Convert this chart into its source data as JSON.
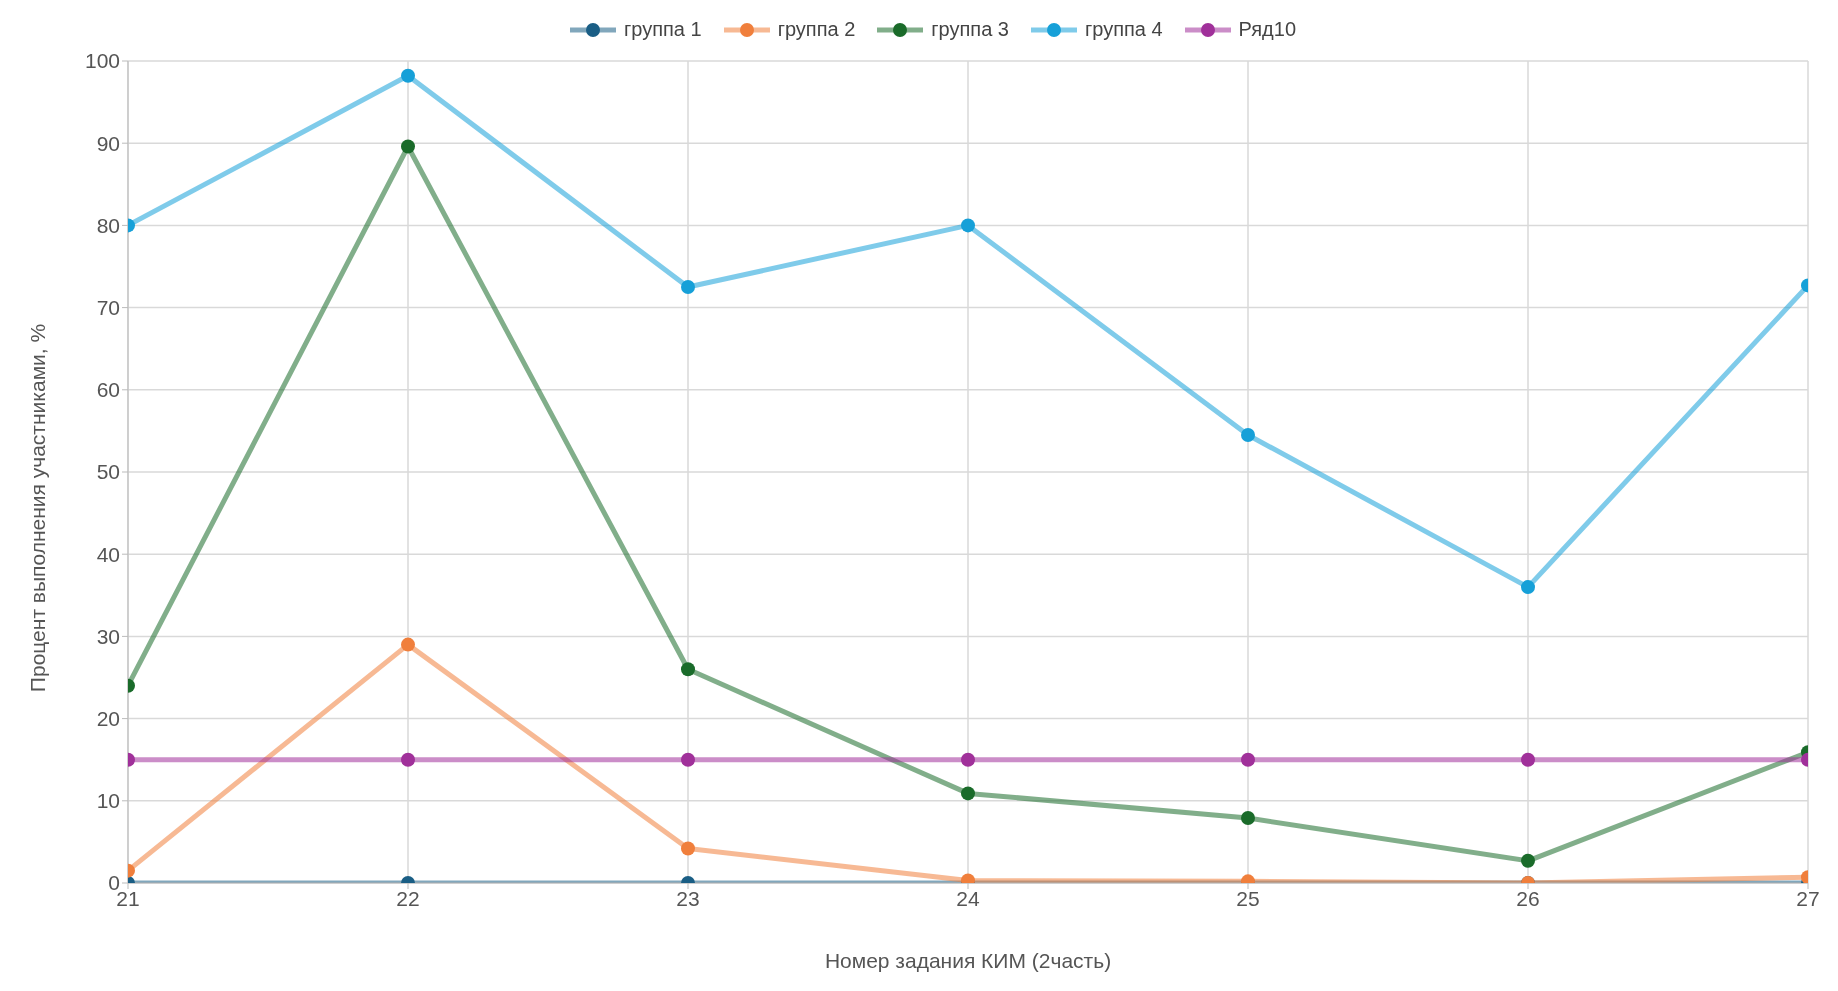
{
  "chart_data": {
    "type": "line",
    "xlabel": "Номер задания КИМ (2часть)",
    "ylabel": "Процент выполнения участниками, %",
    "x": [
      21,
      22,
      23,
      24,
      25,
      26,
      27
    ],
    "xlim": [
      21,
      27
    ],
    "xticks": [
      21,
      22,
      23,
      24,
      25,
      26,
      27
    ],
    "ylim": [
      0,
      100
    ],
    "yticks": [
      0,
      10,
      20,
      30,
      40,
      50,
      60,
      70,
      80,
      90,
      100
    ],
    "grid": true,
    "legend": "top",
    "marker": "circle",
    "line_style": "solid",
    "series": [
      {
        "name": "группа 1",
        "color": "#1a5e85",
        "values": [
          0,
          0,
          0,
          0,
          0,
          0,
          0
        ]
      },
      {
        "name": "группа 2",
        "color": "#f07f3c",
        "values": [
          1.5,
          29,
          4.2,
          0.3,
          0.2,
          0,
          0.7
        ]
      },
      {
        "name": "группа 3",
        "color": "#1a6b2a",
        "values": [
          24,
          89.6,
          26,
          10.9,
          7.9,
          2.7,
          15.9
        ]
      },
      {
        "name": "группа 4",
        "color": "#16a0d8",
        "values": [
          80,
          98.2,
          72.5,
          80,
          54.5,
          36,
          72.7
        ]
      },
      {
        "name": "Ряд10",
        "color": "#a0309a",
        "values": [
          15,
          15,
          15,
          15,
          15,
          15,
          15
        ]
      }
    ]
  }
}
